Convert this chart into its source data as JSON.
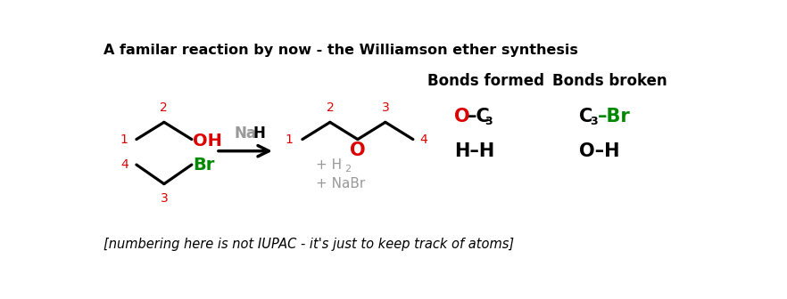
{
  "title": "A familar reaction by now - the Williamson ether synthesis",
  "footnote": "[numbering here is not IUPAC - it's just to keep track of atoms]",
  "bg_color": "#ffffff",
  "title_fontsize": 11.5,
  "footnote_fontsize": 10.5,
  "bonds_formed_header": "Bonds formed",
  "bonds_broken_header": "Bonds broken",
  "BLACK": "#000000",
  "RED": "#dd0000",
  "GREEN": "#008800",
  "GRAY": "#999999"
}
